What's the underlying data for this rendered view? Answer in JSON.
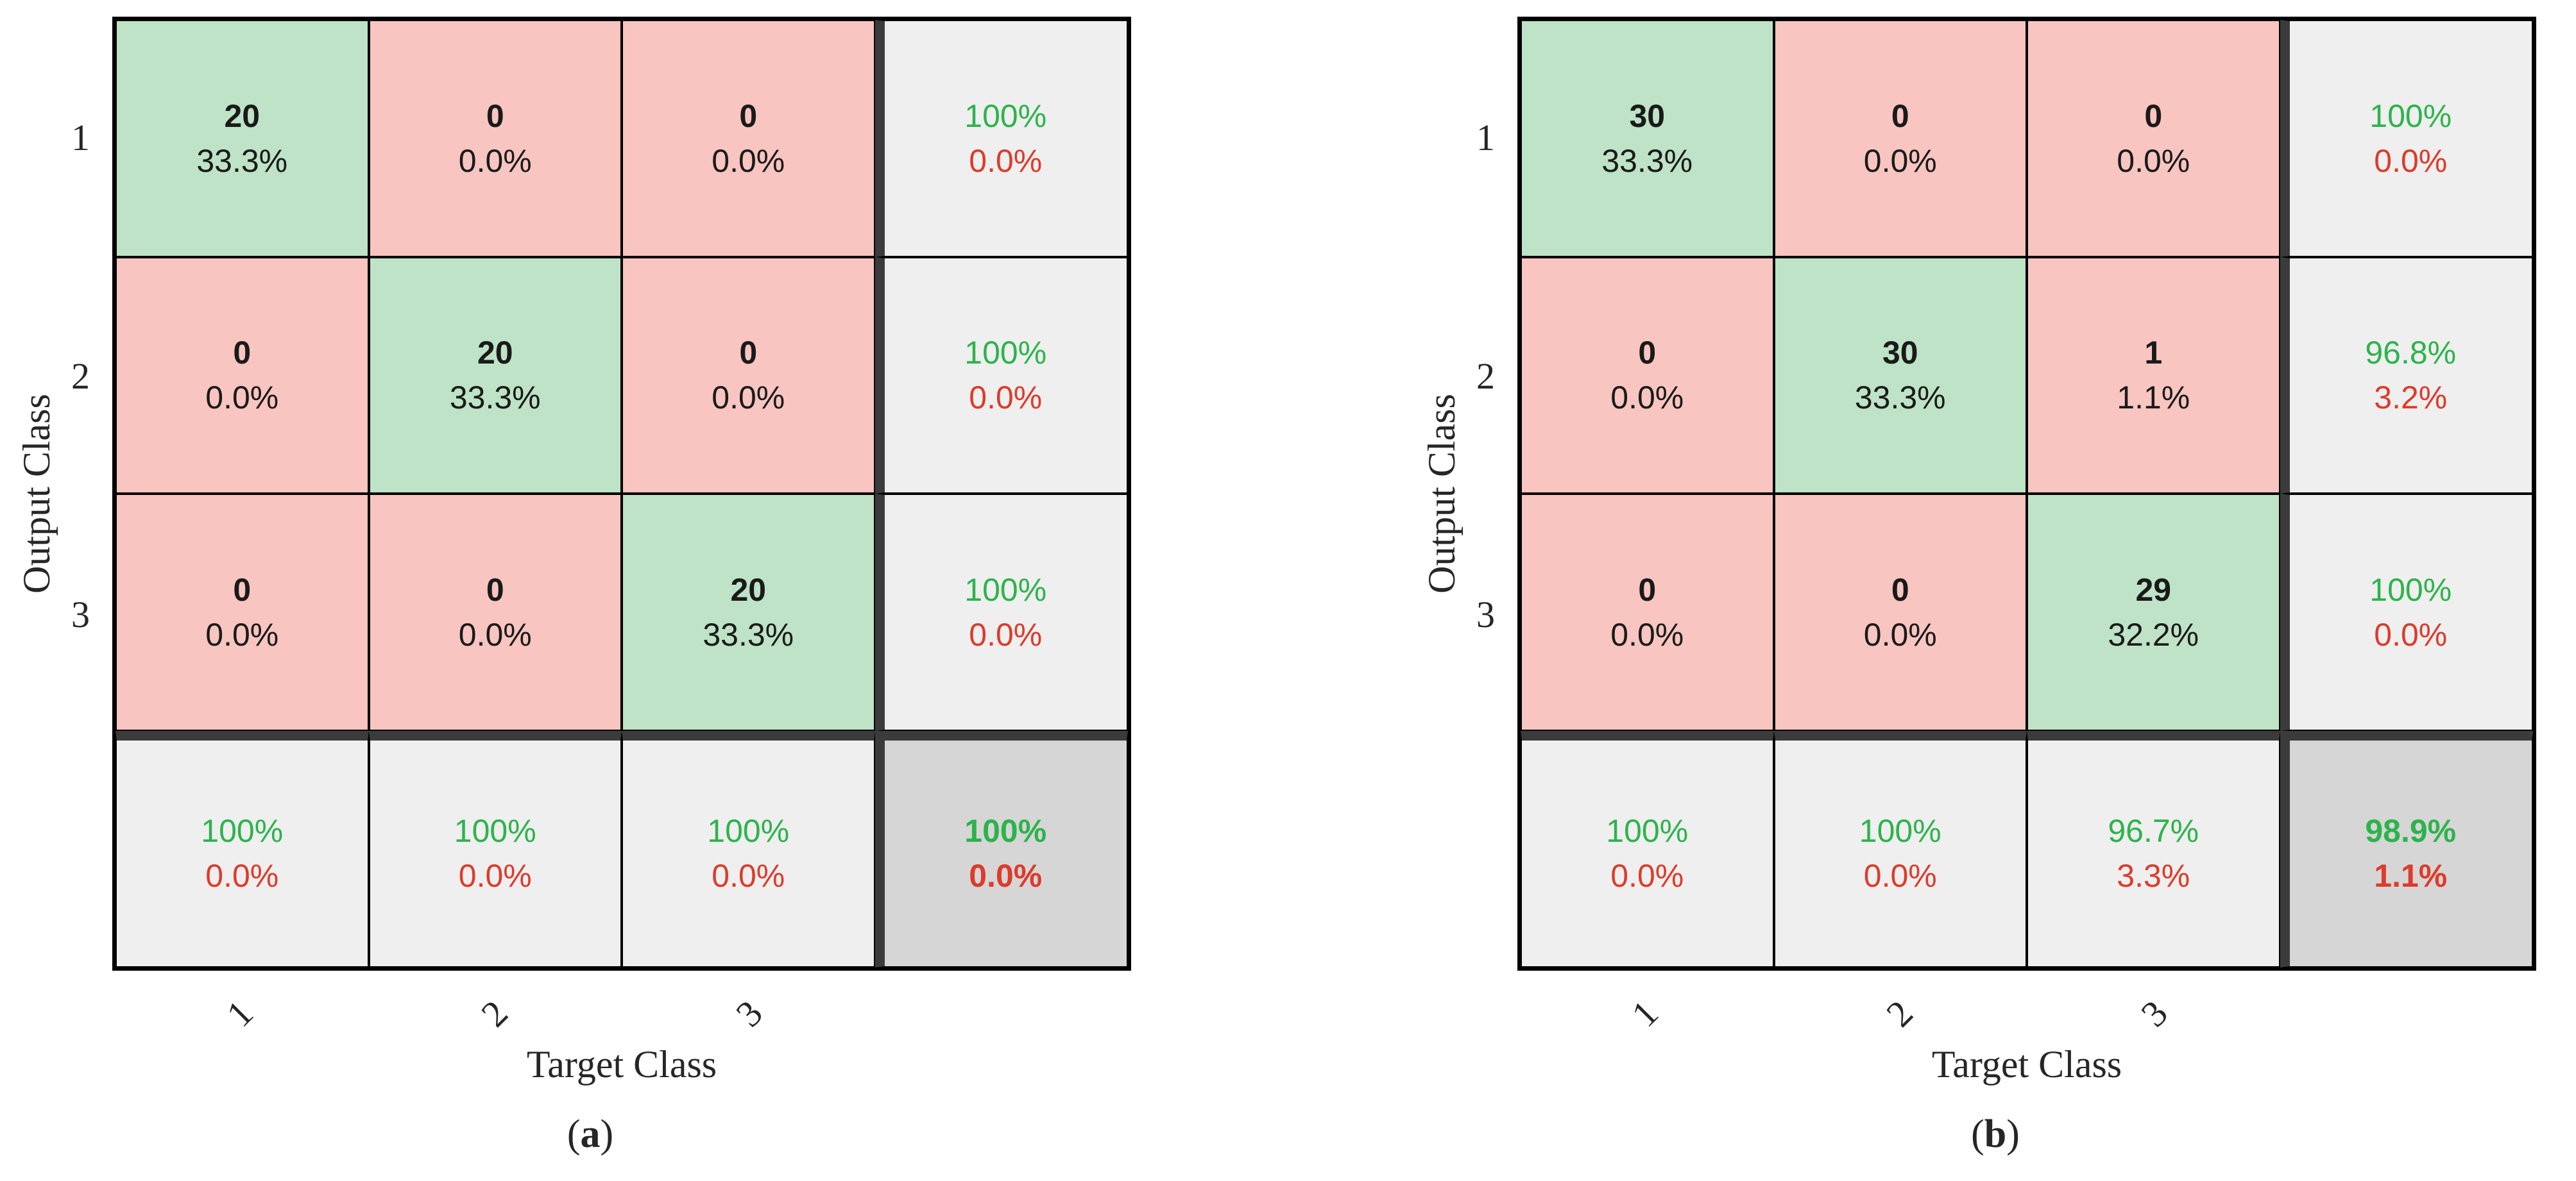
{
  "colors": {
    "correct_bg": "#BEE3C6",
    "incorrect_bg": "#F8C5C0",
    "summary_bg": "#EFEFEF",
    "total_bg": "#D6D6D6",
    "grid_line": "#000000",
    "separator": "#3B3B3B",
    "text_dark": "#1A1A1A",
    "text_green": "#2DB34C",
    "text_red": "#DD3B2B"
  },
  "panels": [
    {
      "id": "a",
      "caption": {
        "open": "(",
        "letter": "a",
        "close": ")"
      },
      "x_axis_label": "Target Class",
      "y_axis_label": "Output Class",
      "x_ticks": [
        "1",
        "2",
        "3"
      ],
      "y_ticks": [
        "1",
        "2",
        "3"
      ],
      "cells": [
        {
          "line1": "20",
          "line2": "33.3%",
          "type": "correct"
        },
        {
          "line1": "0",
          "line2": "0.0%",
          "type": "incorrect"
        },
        {
          "line1": "0",
          "line2": "0.0%",
          "type": "incorrect"
        },
        {
          "line1": "100%",
          "line2": "0.0%",
          "type": "summary"
        },
        {
          "line1": "0",
          "line2": "0.0%",
          "type": "incorrect"
        },
        {
          "line1": "20",
          "line2": "33.3%",
          "type": "correct"
        },
        {
          "line1": "0",
          "line2": "0.0%",
          "type": "incorrect"
        },
        {
          "line1": "100%",
          "line2": "0.0%",
          "type": "summary"
        },
        {
          "line1": "0",
          "line2": "0.0%",
          "type": "incorrect"
        },
        {
          "line1": "0",
          "line2": "0.0%",
          "type": "incorrect"
        },
        {
          "line1": "20",
          "line2": "33.3%",
          "type": "correct"
        },
        {
          "line1": "100%",
          "line2": "0.0%",
          "type": "summary"
        },
        {
          "line1": "100%",
          "line2": "0.0%",
          "type": "summary"
        },
        {
          "line1": "100%",
          "line2": "0.0%",
          "type": "summary"
        },
        {
          "line1": "100%",
          "line2": "0.0%",
          "type": "summary"
        },
        {
          "line1": "100%",
          "line2": "0.0%",
          "type": "total"
        }
      ]
    },
    {
      "id": "b",
      "caption": {
        "open": "(",
        "letter": "b",
        "close": ")"
      },
      "x_axis_label": "Target Class",
      "y_axis_label": "Output Class",
      "x_ticks": [
        "1",
        "2",
        "3"
      ],
      "y_ticks": [
        "1",
        "2",
        "3"
      ],
      "cells": [
        {
          "line1": "30",
          "line2": "33.3%",
          "type": "correct"
        },
        {
          "line1": "0",
          "line2": "0.0%",
          "type": "incorrect"
        },
        {
          "line1": "0",
          "line2": "0.0%",
          "type": "incorrect"
        },
        {
          "line1": "100%",
          "line2": "0.0%",
          "type": "summary"
        },
        {
          "line1": "0",
          "line2": "0.0%",
          "type": "incorrect"
        },
        {
          "line1": "30",
          "line2": "33.3%",
          "type": "correct"
        },
        {
          "line1": "1",
          "line2": "1.1%",
          "type": "incorrect"
        },
        {
          "line1": "96.8%",
          "line2": "3.2%",
          "type": "summary"
        },
        {
          "line1": "0",
          "line2": "0.0%",
          "type": "incorrect"
        },
        {
          "line1": "0",
          "line2": "0.0%",
          "type": "incorrect"
        },
        {
          "line1": "29",
          "line2": "32.2%",
          "type": "correct"
        },
        {
          "line1": "100%",
          "line2": "0.0%",
          "type": "summary"
        },
        {
          "line1": "100%",
          "line2": "0.0%",
          "type": "summary"
        },
        {
          "line1": "100%",
          "line2": "0.0%",
          "type": "summary"
        },
        {
          "line1": "96.7%",
          "line2": "3.3%",
          "type": "summary"
        },
        {
          "line1": "98.9%",
          "line2": "1.1%",
          "type": "total"
        }
      ]
    }
  ],
  "chart_data": [
    {
      "type": "heatmap",
      "subtype": "confusion-matrix",
      "title": "(a)",
      "xlabel": "Target Class",
      "ylabel": "Output Class",
      "x_categories": [
        "1",
        "2",
        "3"
      ],
      "y_categories": [
        "1",
        "2",
        "3"
      ],
      "matrix_counts": [
        [
          20,
          0,
          0
        ],
        [
          0,
          20,
          0
        ],
        [
          0,
          0,
          20
        ]
      ],
      "matrix_percent_of_total": [
        [
          33.3,
          0.0,
          0.0
        ],
        [
          0.0,
          33.3,
          0.0
        ],
        [
          0.0,
          0.0,
          33.3
        ]
      ],
      "row_summary_green_red": [
        [
          "100%",
          "0.0%"
        ],
        [
          "100%",
          "0.0%"
        ],
        [
          "100%",
          "0.0%"
        ]
      ],
      "column_summary_green_red": [
        [
          "100%",
          "0.0%"
        ],
        [
          "100%",
          "0.0%"
        ],
        [
          "100%",
          "0.0%"
        ]
      ],
      "overall_green_red": [
        "100%",
        "0.0%"
      ],
      "grid": true,
      "legend_position": "none"
    },
    {
      "type": "heatmap",
      "subtype": "confusion-matrix",
      "title": "(b)",
      "xlabel": "Target Class",
      "ylabel": "Output Class",
      "x_categories": [
        "1",
        "2",
        "3"
      ],
      "y_categories": [
        "1",
        "2",
        "3"
      ],
      "matrix_counts": [
        [
          30,
          0,
          0
        ],
        [
          0,
          30,
          1
        ],
        [
          0,
          0,
          29
        ]
      ],
      "matrix_percent_of_total": [
        [
          33.3,
          0.0,
          0.0
        ],
        [
          0.0,
          33.3,
          1.1
        ],
        [
          0.0,
          0.0,
          32.2
        ]
      ],
      "row_summary_green_red": [
        [
          "100%",
          "0.0%"
        ],
        [
          "96.8%",
          "3.2%"
        ],
        [
          "100%",
          "0.0%"
        ]
      ],
      "column_summary_green_red": [
        [
          "100%",
          "0.0%"
        ],
        [
          "100%",
          "0.0%"
        ],
        [
          "96.7%",
          "3.3%"
        ]
      ],
      "overall_green_red": [
        "98.9%",
        "1.1%"
      ],
      "grid": true,
      "legend_position": "none"
    }
  ]
}
